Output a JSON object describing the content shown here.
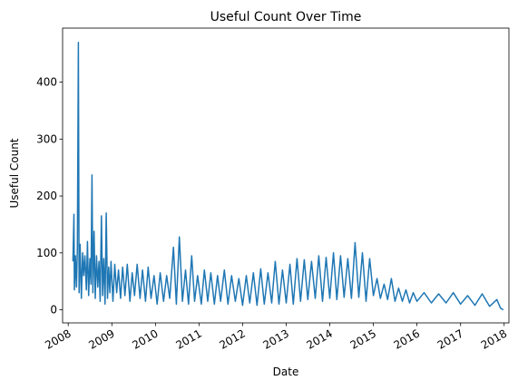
{
  "chart_data": {
    "type": "line",
    "title": "Useful Count Over Time",
    "xlabel": "Date",
    "ylabel": "Useful Count",
    "series_color": "#1f77b4",
    "grid": false,
    "xlim": [
      "2007-11-15",
      "2018-02-10"
    ],
    "ylim": [
      -23,
      495
    ],
    "xticks": [
      {
        "label": "2008",
        "date": "2008-01-01"
      },
      {
        "label": "2009",
        "date": "2009-01-01"
      },
      {
        "label": "2010",
        "date": "2010-01-01"
      },
      {
        "label": "2011",
        "date": "2011-01-01"
      },
      {
        "label": "2012",
        "date": "2012-01-01"
      },
      {
        "label": "2013",
        "date": "2013-01-01"
      },
      {
        "label": "2014",
        "date": "2014-01-01"
      },
      {
        "label": "2015",
        "date": "2015-01-01"
      },
      {
        "label": "2016",
        "date": "2016-01-01"
      },
      {
        "label": "2017",
        "date": "2017-01-01"
      },
      {
        "label": "2018",
        "date": "2018-01-01"
      }
    ],
    "yticks": [
      0,
      100,
      200,
      300,
      400
    ],
    "series": [
      {
        "points": [
          [
            "2008-02-10",
            85
          ],
          [
            "2008-02-18",
            168
          ],
          [
            "2008-02-22",
            35
          ],
          [
            "2008-03-01",
            95
          ],
          [
            "2008-03-10",
            40
          ],
          [
            "2008-03-18",
            110
          ],
          [
            "2008-03-26",
            470
          ],
          [
            "2008-04-01",
            30
          ],
          [
            "2008-04-10",
            115
          ],
          [
            "2008-04-20",
            20
          ],
          [
            "2008-05-01",
            100
          ],
          [
            "2008-05-10",
            60
          ],
          [
            "2008-05-20",
            95
          ],
          [
            "2008-06-01",
            35
          ],
          [
            "2008-06-10",
            120
          ],
          [
            "2008-06-20",
            25
          ],
          [
            "2008-07-01",
            90
          ],
          [
            "2008-07-10",
            45
          ],
          [
            "2008-07-18",
            237
          ],
          [
            "2008-07-26",
            30
          ],
          [
            "2008-08-05",
            138
          ],
          [
            "2008-08-15",
            20
          ],
          [
            "2008-08-25",
            95
          ],
          [
            "2008-09-05",
            40
          ],
          [
            "2008-09-15",
            85
          ],
          [
            "2008-09-25",
            15
          ],
          [
            "2008-10-05",
            165
          ],
          [
            "2008-10-15",
            25
          ],
          [
            "2008-10-25",
            90
          ],
          [
            "2008-11-05",
            10
          ],
          [
            "2008-11-15",
            170
          ],
          [
            "2008-11-25",
            20
          ],
          [
            "2008-12-05",
            75
          ],
          [
            "2008-12-15",
            30
          ],
          [
            "2008-12-25",
            85
          ],
          [
            "2009-01-10",
            15
          ],
          [
            "2009-01-25",
            80
          ],
          [
            "2009-02-10",
            30
          ],
          [
            "2009-02-25",
            70
          ],
          [
            "2009-03-15",
            20
          ],
          [
            "2009-04-01",
            75
          ],
          [
            "2009-04-20",
            25
          ],
          [
            "2009-05-10",
            80
          ],
          [
            "2009-06-01",
            15
          ],
          [
            "2009-06-20",
            65
          ],
          [
            "2009-07-10",
            25
          ],
          [
            "2009-08-01",
            80
          ],
          [
            "2009-08-25",
            20
          ],
          [
            "2009-09-15",
            70
          ],
          [
            "2009-10-10",
            15
          ],
          [
            "2009-11-01",
            75
          ],
          [
            "2009-11-25",
            20
          ],
          [
            "2009-12-20",
            60
          ],
          [
            "2010-01-15",
            10
          ],
          [
            "2010-02-10",
            65
          ],
          [
            "2010-03-10",
            15
          ],
          [
            "2010-04-05",
            60
          ],
          [
            "2010-05-01",
            20
          ],
          [
            "2010-06-01",
            110
          ],
          [
            "2010-06-25",
            10
          ],
          [
            "2010-07-20",
            128
          ],
          [
            "2010-08-15",
            15
          ],
          [
            "2010-09-10",
            70
          ],
          [
            "2010-10-05",
            10
          ],
          [
            "2010-11-01",
            95
          ],
          [
            "2010-11-25",
            15
          ],
          [
            "2010-12-20",
            60
          ],
          [
            "2011-01-20",
            10
          ],
          [
            "2011-02-15",
            70
          ],
          [
            "2011-03-15",
            15
          ],
          [
            "2011-04-10",
            65
          ],
          [
            "2011-05-10",
            10
          ],
          [
            "2011-06-05",
            60
          ],
          [
            "2011-07-01",
            15
          ],
          [
            "2011-08-01",
            70
          ],
          [
            "2011-09-01",
            10
          ],
          [
            "2011-10-01",
            60
          ],
          [
            "2011-11-01",
            15
          ],
          [
            "2011-12-01",
            55
          ],
          [
            "2012-01-01",
            8
          ],
          [
            "2012-02-01",
            60
          ],
          [
            "2012-03-01",
            12
          ],
          [
            "2012-04-01",
            65
          ],
          [
            "2012-05-01",
            8
          ],
          [
            "2012-06-01",
            72
          ],
          [
            "2012-07-01",
            10
          ],
          [
            "2012-08-01",
            65
          ],
          [
            "2012-09-01",
            12
          ],
          [
            "2012-10-01",
            85
          ],
          [
            "2012-11-01",
            10
          ],
          [
            "2012-12-01",
            70
          ],
          [
            "2013-01-01",
            12
          ],
          [
            "2013-02-01",
            80
          ],
          [
            "2013-03-01",
            10
          ],
          [
            "2013-04-01",
            90
          ],
          [
            "2013-05-01",
            15
          ],
          [
            "2013-06-01",
            88
          ],
          [
            "2013-07-01",
            18
          ],
          [
            "2013-08-01",
            85
          ],
          [
            "2013-09-01",
            20
          ],
          [
            "2013-10-01",
            95
          ],
          [
            "2013-11-01",
            15
          ],
          [
            "2013-12-01",
            92
          ],
          [
            "2014-01-01",
            20
          ],
          [
            "2014-02-01",
            100
          ],
          [
            "2014-03-01",
            18
          ],
          [
            "2014-04-01",
            95
          ],
          [
            "2014-05-01",
            22
          ],
          [
            "2014-06-01",
            90
          ],
          [
            "2014-07-01",
            20
          ],
          [
            "2014-08-01",
            118
          ],
          [
            "2014-09-01",
            22
          ],
          [
            "2014-10-01",
            100
          ],
          [
            "2014-11-01",
            15
          ],
          [
            "2014-12-01",
            90
          ],
          [
            "2015-01-01",
            25
          ],
          [
            "2015-02-01",
            55
          ],
          [
            "2015-03-01",
            20
          ],
          [
            "2015-04-01",
            45
          ],
          [
            "2015-05-01",
            18
          ],
          [
            "2015-06-01",
            55
          ],
          [
            "2015-07-01",
            15
          ],
          [
            "2015-08-01",
            38
          ],
          [
            "2015-09-01",
            15
          ],
          [
            "2015-10-01",
            35
          ],
          [
            "2015-11-01",
            12
          ],
          [
            "2015-12-01",
            30
          ],
          [
            "2016-01-01",
            15
          ],
          [
            "2016-03-01",
            30
          ],
          [
            "2016-05-01",
            12
          ],
          [
            "2016-07-01",
            28
          ],
          [
            "2016-09-01",
            12
          ],
          [
            "2016-11-01",
            30
          ],
          [
            "2017-01-01",
            10
          ],
          [
            "2017-03-01",
            25
          ],
          [
            "2017-05-01",
            8
          ],
          [
            "2017-07-01",
            28
          ],
          [
            "2017-09-01",
            6
          ],
          [
            "2017-11-01",
            18
          ],
          [
            "2017-12-01",
            3
          ],
          [
            "2017-12-25",
            0
          ]
        ]
      }
    ]
  }
}
